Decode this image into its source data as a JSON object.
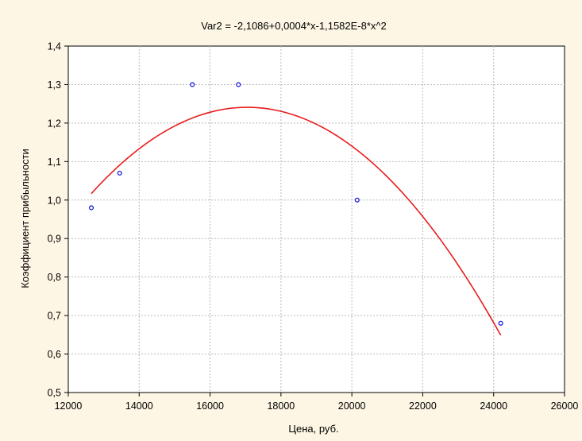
{
  "chart_data": {
    "type": "scatter",
    "title": "Var2 = -2,1086+0,0004*x-1,1582E-8*x^2",
    "xlabel": "Цена, руб.",
    "ylabel": "Коэффициент прибыльности",
    "xlim": [
      12000,
      26000
    ],
    "ylim": [
      0.5,
      1.4
    ],
    "xticks": [
      12000,
      14000,
      16000,
      18000,
      20000,
      22000,
      24000,
      26000
    ],
    "xtick_labels": [
      "12000",
      "14000",
      "16000",
      "18000",
      "20000",
      "22000",
      "24000",
      "26000"
    ],
    "yticks": [
      0.5,
      0.6,
      0.7,
      0.8,
      0.9,
      1.0,
      1.1,
      1.2,
      1.3,
      1.4
    ],
    "ytick_labels": [
      "0,5",
      "0,6",
      "0,7",
      "0,8",
      "0,9",
      "1,0",
      "1,1",
      "1,2",
      "1,3",
      "1,4"
    ],
    "grid": true,
    "points": {
      "x": [
        12650,
        13450,
        15500,
        16800,
        20150,
        24200
      ],
      "y": [
        0.98,
        1.07,
        1.3,
        1.3,
        1.0,
        0.68
      ],
      "color": "#1a1adb"
    },
    "fit_curve": {
      "kind": "quadratic",
      "x_range": [
        12650,
        24200
      ],
      "vertex": [
        17050,
        1.241
      ],
      "a": -1.1582e-08,
      "color": "#e81c1c"
    }
  },
  "colors": {
    "background": "#fdf6e4",
    "plot_area": "#ffffff",
    "grid": "#b8b8b8",
    "axis": "#000000"
  }
}
